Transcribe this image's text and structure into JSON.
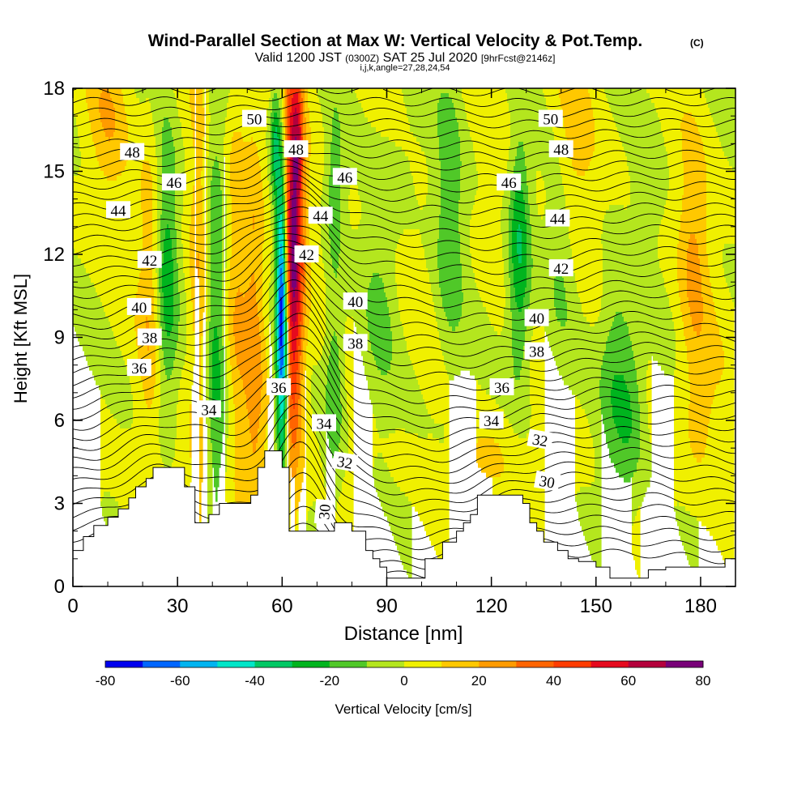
{
  "chart_data": {
    "type": "heatmap",
    "title": "Wind-Parallel Section at Max W: Vertical Velocity & Pot.Temp.",
    "title_mark": "(C)",
    "subtitle_parts": [
      "Valid 1200 JST",
      "(0300Z)",
      "SAT 25 Jul 2020",
      "[9hrFcst@2146z]"
    ],
    "subtitle2": "i,j,k,angle=27,28,24,54",
    "xlabel": "Distance [nm]",
    "ylabel": "Height [Kft MSL]",
    "xlim": [
      0,
      190
    ],
    "ylim": [
      0,
      18
    ],
    "xticks": [
      0,
      30,
      60,
      90,
      120,
      150,
      180
    ],
    "yticks": [
      0,
      3,
      6,
      9,
      12,
      15,
      18
    ],
    "colorbar": {
      "label": "Vertical Velocity [cm/s]",
      "ticks": [
        -80,
        -60,
        -40,
        -20,
        0,
        20,
        40,
        60,
        80
      ],
      "levels": [
        -80,
        -70,
        -60,
        -50,
        -40,
        -30,
        -20,
        -10,
        0,
        10,
        20,
        30,
        40,
        50,
        60,
        70,
        80
      ],
      "colors": [
        "#0000ee",
        "#0066ff",
        "#00b4f0",
        "#00e6c8",
        "#00c864",
        "#00b41e",
        "#50c828",
        "#b4e61e",
        "#f0f000",
        "#ffc800",
        "#ff9b00",
        "#ff6400",
        "#ff3c00",
        "#e60a1e",
        "#b4003c",
        "#780078"
      ]
    },
    "theta_contours": [
      {
        "value": 30,
        "label_at": [
          [
            72,
            2.7
          ]
        ],
        "rotate": -85
      },
      {
        "value": 30,
        "label_at": [
          [
            136,
            3.8
          ]
        ],
        "rotate": 10
      },
      {
        "value": 32,
        "label_at": [
          [
            78,
            4.5
          ],
          [
            134,
            5.3
          ]
        ],
        "rotate": 10
      },
      {
        "value": 34,
        "label_at": [
          [
            39,
            6.4
          ],
          [
            72,
            5.9
          ],
          [
            120,
            6.0
          ]
        ],
        "rotate": 0
      },
      {
        "value": 36,
        "label_at": [
          [
            19,
            7.9
          ],
          [
            59,
            7.2
          ],
          [
            123,
            7.2
          ]
        ],
        "rotate": 0
      },
      {
        "value": 38,
        "label_at": [
          [
            22,
            9.0
          ],
          [
            81,
            8.8
          ],
          [
            133,
            8.5
          ]
        ],
        "rotate": 0
      },
      {
        "value": 40,
        "label_at": [
          [
            19,
            10.1
          ],
          [
            81,
            10.3
          ],
          [
            133,
            9.7
          ]
        ],
        "rotate": 0
      },
      {
        "value": 42,
        "label_at": [
          [
            22,
            11.8
          ],
          [
            67,
            12.0
          ],
          [
            140,
            11.5
          ]
        ],
        "rotate": 0
      },
      {
        "value": 44,
        "label_at": [
          [
            13,
            13.6
          ],
          [
            71,
            13.4
          ],
          [
            139,
            13.3
          ]
        ],
        "rotate": 0
      },
      {
        "value": 46,
        "label_at": [
          [
            29,
            14.6
          ],
          [
            78,
            14.8
          ],
          [
            125,
            14.6
          ]
        ],
        "rotate": 0
      },
      {
        "value": 48,
        "label_at": [
          [
            17,
            15.7
          ],
          [
            64,
            15.8
          ],
          [
            140,
            15.8
          ]
        ],
        "rotate": 0
      },
      {
        "value": 50,
        "label_at": [
          [
            52,
            16.9
          ],
          [
            137,
            16.9
          ]
        ],
        "rotate": 0
      }
    ],
    "terrain": [
      [
        0,
        1.3
      ],
      [
        3,
        1.3
      ],
      [
        3,
        1.8
      ],
      [
        6,
        1.8
      ],
      [
        6,
        2.2
      ],
      [
        10,
        2.2
      ],
      [
        10,
        2.5
      ],
      [
        13,
        2.5
      ],
      [
        13,
        2.8
      ],
      [
        16,
        2.8
      ],
      [
        16,
        3.2
      ],
      [
        18,
        3.2
      ],
      [
        18,
        3.6
      ],
      [
        21,
        3.6
      ],
      [
        21,
        3.9
      ],
      [
        23,
        3.9
      ],
      [
        23,
        4.3
      ],
      [
        32,
        4.3
      ],
      [
        32,
        3.6
      ],
      [
        35,
        3.6
      ],
      [
        35,
        2.3
      ],
      [
        39,
        2.3
      ],
      [
        39,
        2.6
      ],
      [
        42,
        2.6
      ],
      [
        42,
        3.0
      ],
      [
        51,
        3.0
      ],
      [
        51,
        3.3
      ],
      [
        53,
        3.3
      ],
      [
        53,
        4.3
      ],
      [
        55,
        4.3
      ],
      [
        55,
        4.9
      ],
      [
        60,
        4.9
      ],
      [
        60,
        4.3
      ],
      [
        62,
        4.3
      ],
      [
        62,
        2.0
      ],
      [
        75,
        2.0
      ],
      [
        75,
        2.3
      ],
      [
        80,
        2.3
      ],
      [
        80,
        2.0
      ],
      [
        84,
        2.0
      ],
      [
        84,
        1.3
      ],
      [
        86,
        1.3
      ],
      [
        86,
        1.0
      ],
      [
        88,
        1.0
      ],
      [
        88,
        0.7
      ],
      [
        90,
        0.7
      ],
      [
        90,
        0.3
      ],
      [
        101,
        0.3
      ],
      [
        101,
        1.0
      ],
      [
        106,
        1.0
      ],
      [
        106,
        1.6
      ],
      [
        110,
        1.6
      ],
      [
        110,
        2.0
      ],
      [
        112,
        2.0
      ],
      [
        112,
        2.3
      ],
      [
        114,
        2.3
      ],
      [
        114,
        2.6
      ],
      [
        116,
        2.6
      ],
      [
        116,
        3.3
      ],
      [
        129,
        3.3
      ],
      [
        129,
        3.0
      ],
      [
        131,
        3.0
      ],
      [
        131,
        2.3
      ],
      [
        133,
        2.3
      ],
      [
        133,
        2.0
      ],
      [
        135,
        2.0
      ],
      [
        135,
        1.6
      ],
      [
        139,
        1.6
      ],
      [
        139,
        1.3
      ],
      [
        142,
        1.3
      ],
      [
        142,
        1.0
      ],
      [
        145,
        1.0
      ],
      [
        145,
        0.9
      ],
      [
        150,
        0.9
      ],
      [
        150,
        0.7
      ],
      [
        154,
        0.7
      ],
      [
        154,
        0.3
      ],
      [
        165,
        0.3
      ],
      [
        165,
        0.6
      ],
      [
        170,
        0.6
      ],
      [
        170,
        0.7
      ],
      [
        187,
        0.7
      ],
      [
        187,
        1.0
      ],
      [
        190,
        1.0
      ]
    ]
  }
}
